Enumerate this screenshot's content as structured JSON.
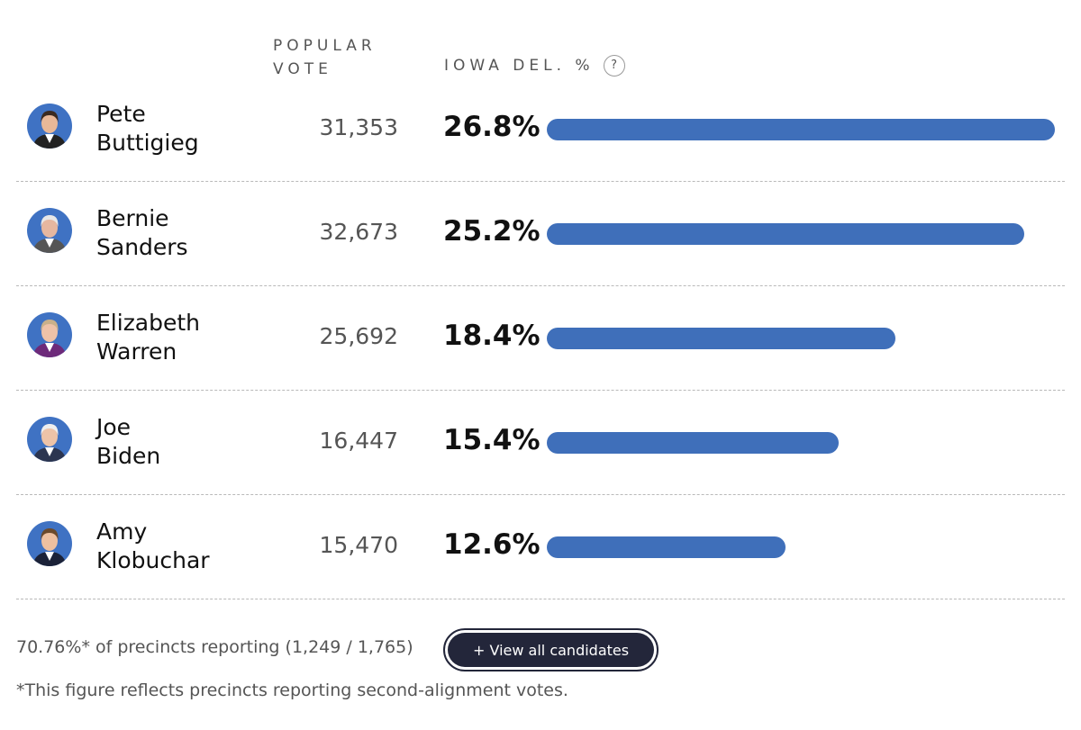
{
  "header": {
    "popular_vote_label": "POPULAR VOTE",
    "delegate_label": "IOWA DEL. %",
    "help_label": "?"
  },
  "chart_data": {
    "type": "bar",
    "orientation": "horizontal",
    "title": "",
    "xlabel": "IOWA DEL. %",
    "ylabel": "",
    "xlim": [
      0,
      26.8
    ],
    "categories": [
      "Pete Buttigieg",
      "Bernie Sanders",
      "Elizabeth Warren",
      "Joe Biden",
      "Amy Klobuchar"
    ],
    "values": [
      26.8,
      25.2,
      18.4,
      15.4,
      12.6
    ],
    "value_labels": [
      "26.8%",
      "25.2%",
      "18.4%",
      "15.4%",
      "12.6%"
    ],
    "bar_color": "#3f6fba"
  },
  "candidates": [
    {
      "name": "Pete\nButtigieg",
      "votes": "31,353",
      "pct_label": "26.8%",
      "pct": 26.8,
      "avatar_bg": "#3f72c3",
      "skin": "#e8b898",
      "hair": "#3a2a20",
      "suit": "#222"
    },
    {
      "name": "Bernie\nSanders",
      "votes": "32,673",
      "pct_label": "25.2%",
      "pct": 25.2,
      "avatar_bg": "#3f72c3",
      "skin": "#e6b7a0",
      "hair": "#e8e8e8",
      "suit": "#555"
    },
    {
      "name": "Elizabeth\nWarren",
      "votes": "25,692",
      "pct_label": "18.4%",
      "pct": 18.4,
      "avatar_bg": "#3f72c3",
      "skin": "#eec2a8",
      "hair": "#c9b08a",
      "suit": "#6d2a7a"
    },
    {
      "name": "Joe\nBiden",
      "votes": "16,447",
      "pct_label": "15.4%",
      "pct": 15.4,
      "avatar_bg": "#3f72c3",
      "skin": "#edc3a8",
      "hair": "#eeeeee",
      "suit": "#2b3550"
    },
    {
      "name": "Amy\nKlobuchar",
      "votes": "15,470",
      "pct_label": "12.6%",
      "pct": 12.6,
      "avatar_bg": "#3f72c3",
      "skin": "#eec0a0",
      "hair": "#6b4a2c",
      "suit": "#1b2238"
    }
  ],
  "footer": {
    "reporting": "70.76%* of precincts reporting (1,249 / 1,765)",
    "button_label": "+ View all candidates",
    "footnote": "*This figure reflects precincts reporting second-alignment votes."
  }
}
